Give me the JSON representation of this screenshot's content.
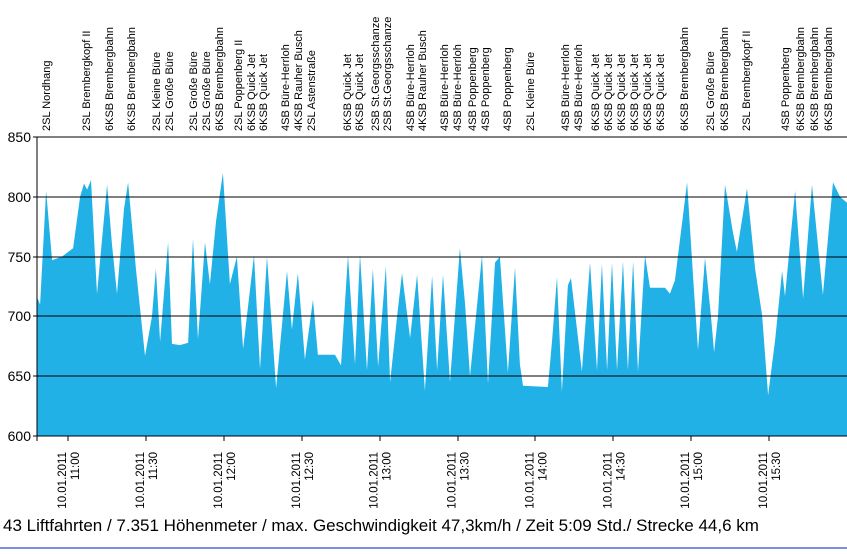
{
  "summary": {
    "text": "43 Liftfahrten / 7.351 Höhenmeter / max. Geschwindigkeit 47,3km/h / Zeit 5:09 Std./ Strecke 44,6 km"
  },
  "colors": {
    "area": "#22b1e7",
    "grid": "#000000",
    "text": "#000000",
    "bottom_line": "#8090d8"
  },
  "chart_data": {
    "type": "area",
    "title": "",
    "grid": true,
    "area_color": "#22b1e7",
    "y_axis": {
      "min": 600,
      "max": 850,
      "step": 50,
      "tick_labels": [
        "600",
        "650",
        "700",
        "750",
        "800",
        "850"
      ]
    },
    "x_axis": {
      "start_time": "10:48",
      "end_time": "16:00",
      "date_label": "10.01.2011",
      "tick_times": [
        "11:00",
        "11:30",
        "12:00",
        "12:30",
        "13:00",
        "13:30",
        "14:00",
        "14:30",
        "15:00",
        "15:30"
      ]
    },
    "lift_labels": [
      {
        "name": "2SL Nordhang",
        "t_min": 3.5
      },
      {
        "name": "2SL Brembergkopf II",
        "t_min": 18.9
      },
      {
        "name": "6KSB Brembergbahn",
        "t_min": 27.7
      },
      {
        "name": "6KSB Brembergbahn",
        "t_min": 36.2
      },
      {
        "name": "2SL Kleine Büre",
        "t_min": 45.8
      },
      {
        "name": "2SL Große Büre",
        "t_min": 50.8
      },
      {
        "name": "2SL Große Büre",
        "t_min": 60.1
      },
      {
        "name": "2SL Große Büre",
        "t_min": 65.1
      },
      {
        "name": "6KSB Brembergbahn",
        "t_min": 70.1
      },
      {
        "name": "2SL Poppenberg II",
        "t_min": 77.4
      },
      {
        "name": "6KSB Quick Jet",
        "t_min": 82.4
      },
      {
        "name": "6KSB Quick Jet",
        "t_min": 87.1
      },
      {
        "name": "4SB Büre-Herrloh",
        "t_min": 95.5
      },
      {
        "name": "4KSB Rauher Busch",
        "t_min": 100.5
      },
      {
        "name": "2SL Astenstraße",
        "t_min": 105.5
      },
      {
        "name": "6KSB Quick Jet",
        "t_min": 119.4
      },
      {
        "name": "6KSB Quick Jet",
        "t_min": 124.0
      },
      {
        "name": "2SB St.Georgsschanze",
        "t_min": 130.2
      },
      {
        "name": "2SB St.Georgsschanze",
        "t_min": 134.8
      },
      {
        "name": "4SB Büre-Herrloh",
        "t_min": 143.7
      },
      {
        "name": "4KSB Rauher Busch",
        "t_min": 148.3
      },
      {
        "name": "4SB Büre-Herrloh",
        "t_min": 156.8
      },
      {
        "name": "4SB Büre-Herrloh",
        "t_min": 161.8
      },
      {
        "name": "4SB Poppenberg",
        "t_min": 167.5
      },
      {
        "name": "4SB Poppenberg",
        "t_min": 172.6
      },
      {
        "name": "4SB Poppenberg",
        "t_min": 181.0
      },
      {
        "name": "2SL Kleine Büre",
        "t_min": 189.9
      },
      {
        "name": "4SB Büre-Herrloh",
        "t_min": 203.4
      },
      {
        "name": "4SB Büre-Herrloh",
        "t_min": 208.4
      },
      {
        "name": "6KSB Quick Jet",
        "t_min": 214.9
      },
      {
        "name": "6KSB Quick Jet",
        "t_min": 219.9
      },
      {
        "name": "6KSB Quick Jet",
        "t_min": 224.9
      },
      {
        "name": "6KSB Quick Jet",
        "t_min": 229.9
      },
      {
        "name": "6KSB Quick Jet",
        "t_min": 234.9
      },
      {
        "name": "6KSB Quick Jet",
        "t_min": 239.9
      },
      {
        "name": "6KSB Brembergbahn",
        "t_min": 249.2
      },
      {
        "name": "2SL Große Büre",
        "t_min": 259.2
      },
      {
        "name": "6KSB Brembergbahn",
        "t_min": 264.6
      },
      {
        "name": "2SL Brembergkopf II",
        "t_min": 273.1
      },
      {
        "name": "4SB Poppenberg",
        "t_min": 288.1
      },
      {
        "name": "6KSB Brembergbahn",
        "t_min": 293.9
      },
      {
        "name": "6KSB Brembergbahn",
        "t_min": 299.3
      },
      {
        "name": "6KSB Brembergbahn",
        "t_min": 304.7
      }
    ],
    "profile": [
      [
        0,
        716
      ],
      [
        1.2,
        710
      ],
      [
        3.5,
        805
      ],
      [
        5.8,
        747
      ],
      [
        9.6,
        750
      ],
      [
        13.9,
        757
      ],
      [
        16.6,
        800
      ],
      [
        18.1,
        811
      ],
      [
        19.3,
        806
      ],
      [
        20.8,
        814
      ],
      [
        23.1,
        719
      ],
      [
        27,
        810
      ],
      [
        28.9,
        760
      ],
      [
        30.8,
        719
      ],
      [
        33.5,
        790
      ],
      [
        35.1,
        812
      ],
      [
        38.1,
        740
      ],
      [
        41.6,
        667
      ],
      [
        44.3,
        700
      ],
      [
        45.8,
        740
      ],
      [
        47.4,
        679
      ],
      [
        50.5,
        762
      ],
      [
        52,
        677
      ],
      [
        55.1,
        676
      ],
      [
        58.2,
        678
      ],
      [
        60.1,
        765
      ],
      [
        62,
        681
      ],
      [
        64.7,
        762
      ],
      [
        66.6,
        727
      ],
      [
        69,
        780
      ],
      [
        71.6,
        820
      ],
      [
        74.3,
        727
      ],
      [
        77,
        750
      ],
      [
        79.4,
        673
      ],
      [
        83.6,
        751
      ],
      [
        85.9,
        656
      ],
      [
        88.6,
        750
      ],
      [
        92.1,
        640
      ],
      [
        96.3,
        738
      ],
      [
        98.2,
        689
      ],
      [
        100.5,
        736
      ],
      [
        103.2,
        664
      ],
      [
        106.3,
        714
      ],
      [
        108.2,
        668
      ],
      [
        114.8,
        668
      ],
      [
        117.1,
        659
      ],
      [
        119.8,
        751
      ],
      [
        122.5,
        660
      ],
      [
        124.4,
        752
      ],
      [
        127.1,
        655
      ],
      [
        129.4,
        740
      ],
      [
        131.4,
        658
      ],
      [
        134.4,
        742
      ],
      [
        136,
        645
      ],
      [
        138.7,
        700
      ],
      [
        140.6,
        736
      ],
      [
        143.7,
        682
      ],
      [
        146.4,
        735
      ],
      [
        149.4,
        638
      ],
      [
        152.2,
        734
      ],
      [
        154.1,
        655
      ],
      [
        156.4,
        735
      ],
      [
        159.1,
        645
      ],
      [
        162.9,
        757
      ],
      [
        164.9,
        710
      ],
      [
        166.8,
        650
      ],
      [
        171.4,
        751
      ],
      [
        173.7,
        644
      ],
      [
        176.4,
        745
      ],
      [
        178.3,
        750
      ],
      [
        181.4,
        653
      ],
      [
        184.1,
        741
      ],
      [
        186,
        660
      ],
      [
        187.2,
        642
      ],
      [
        196.8,
        641
      ],
      [
        198.4,
        680
      ],
      [
        200.3,
        733
      ],
      [
        202.2,
        637
      ],
      [
        204.5,
        726
      ],
      [
        205.7,
        732
      ],
      [
        209.9,
        654
      ],
      [
        213,
        745
      ],
      [
        215.7,
        655
      ],
      [
        217.6,
        744
      ],
      [
        219.6,
        655
      ],
      [
        221.5,
        745
      ],
      [
        223.4,
        655
      ],
      [
        225.7,
        746
      ],
      [
        227.6,
        655
      ],
      [
        229.6,
        746
      ],
      [
        231.5,
        654
      ],
      [
        234.2,
        751
      ],
      [
        236.1,
        724
      ],
      [
        241.9,
        724
      ],
      [
        243.8,
        719
      ],
      [
        245.7,
        730
      ],
      [
        250.4,
        812
      ],
      [
        253.1,
        720
      ],
      [
        254.6,
        672
      ],
      [
        257.3,
        749
      ],
      [
        259.6,
        700
      ],
      [
        260.8,
        670
      ],
      [
        262.3,
        700
      ],
      [
        265,
        810
      ],
      [
        268.1,
        770
      ],
      [
        269.6,
        754
      ],
      [
        273.5,
        807
      ],
      [
        276.6,
        740
      ],
      [
        279.3,
        701
      ],
      [
        281.6,
        634
      ],
      [
        284.3,
        680
      ],
      [
        287,
        738
      ],
      [
        288.1,
        717
      ],
      [
        290,
        760
      ],
      [
        292,
        805
      ],
      [
        295.1,
        715
      ],
      [
        298.5,
        810
      ],
      [
        300.8,
        760
      ],
      [
        302.7,
        718
      ],
      [
        306.6,
        812
      ],
      [
        309.3,
        800
      ],
      [
        312,
        795
      ]
    ]
  }
}
